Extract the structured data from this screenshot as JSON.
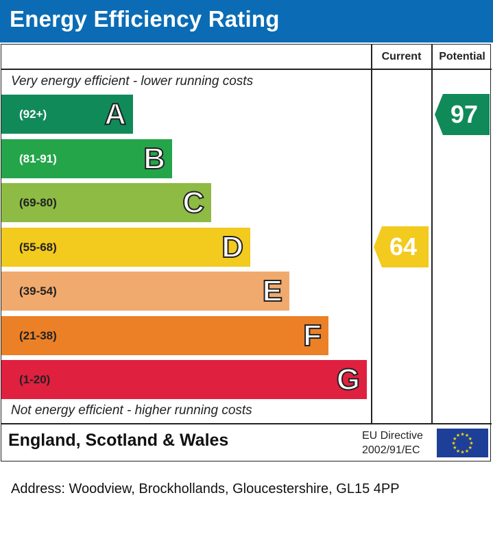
{
  "header": {
    "title": "Energy Efficiency Rating"
  },
  "columns": {
    "current": "Current",
    "potential": "Potential"
  },
  "notes": {
    "top": "Very energy efficient - lower running costs",
    "bottom": "Not energy efficient - higher running costs"
  },
  "chart_data": {
    "type": "bar",
    "title": "Energy Efficiency Rating",
    "categories": [
      "A",
      "B",
      "C",
      "D",
      "E",
      "F",
      "G"
    ],
    "bands": [
      {
        "letter": "A",
        "range": "(92+)",
        "color": "#118a5a",
        "light_text": true
      },
      {
        "letter": "B",
        "range": "(81-91)",
        "color": "#24a54a",
        "light_text": true
      },
      {
        "letter": "C",
        "range": "(69-80)",
        "color": "#8dbb44",
        "light_text": false
      },
      {
        "letter": "D",
        "range": "(55-68)",
        "color": "#f3ca1e",
        "light_text": false
      },
      {
        "letter": "E",
        "range": "(39-54)",
        "color": "#f1aa6d",
        "light_text": false
      },
      {
        "letter": "F",
        "range": "(21-38)",
        "color": "#eb8026",
        "light_text": false
      },
      {
        "letter": "G",
        "range": "(1-20)",
        "color": "#e0203f",
        "light_text": false
      }
    ],
    "current": {
      "value": 64,
      "band": "D",
      "color": "#f3ca1e"
    },
    "potential": {
      "value": 97,
      "band": "A",
      "color": "#118a5a"
    }
  },
  "footer": {
    "region": "England, Scotland & Wales",
    "eu_line1": "EU Directive",
    "eu_line2": "2002/91/EC"
  },
  "address": "Address: Woodview, Brockhollands, Gloucestershire, GL15 4PP"
}
